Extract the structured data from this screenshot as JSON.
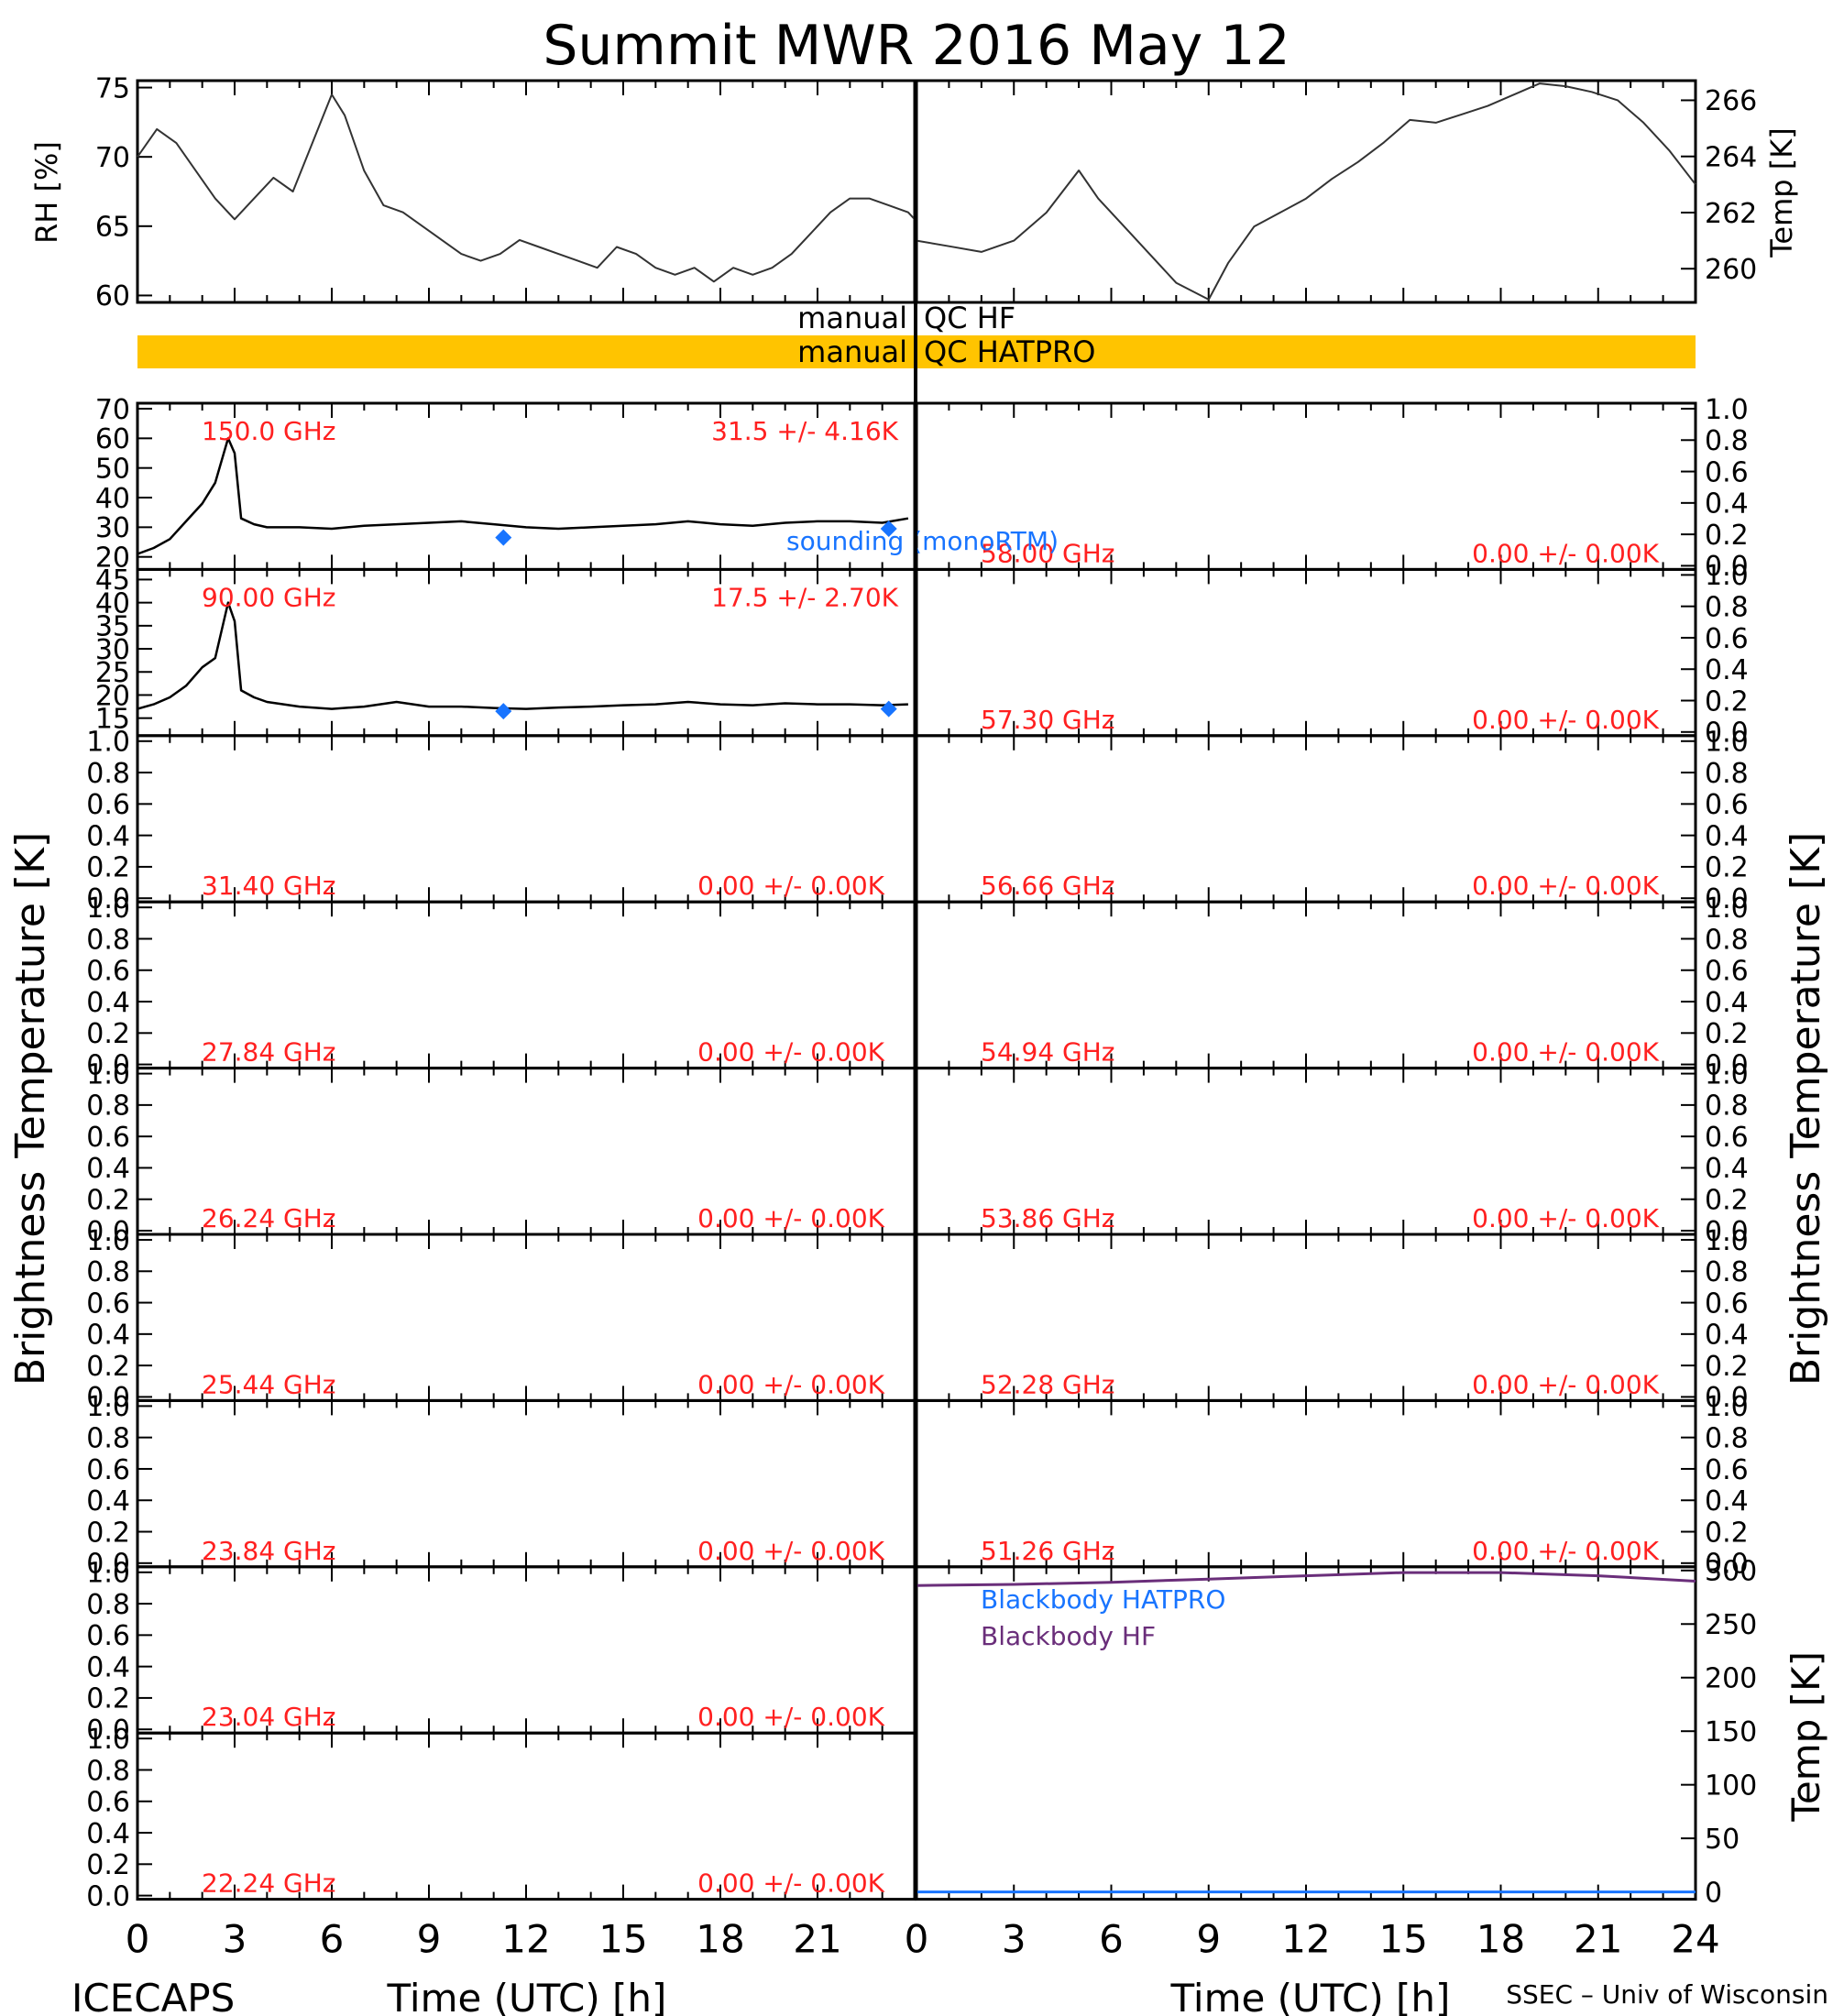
{
  "title": "Summit MWR 2016 May 12",
  "footer": {
    "left": "ICECAPS",
    "right": "SSEC – Univ of Wisconsin"
  },
  "axis_labels": {
    "rh": "RH [%]",
    "temp": "Temp [K]",
    "tb_left": "Brightness Temperature [K]",
    "tb_right": "Brightness Temperature [K]",
    "bb_temp": "Temp [K]",
    "time_left": "Time (UTC) [h]",
    "time_right": "Time (UTC) [h]"
  },
  "qc": {
    "hf": "manual QC HF",
    "hatpro": "manual QC HATPRO",
    "hatpro_color": "#FFC400"
  },
  "annotations": {
    "sounding": "sounding (monoRTM)",
    "sounding_color": "#1874FF",
    "text_color": "#FF2020"
  },
  "bb_legend": {
    "hatpro": "Blackbody HATPRO",
    "hatpro_color": "#1874FF",
    "hf": "Blackbody HF",
    "hf_color": "#6A2E7A"
  },
  "chart_data": [
    {
      "id": "rh",
      "type": "line",
      "xlim": [
        0,
        12
      ],
      "ylim": [
        59.5,
        75.5
      ],
      "yticks": [
        60,
        65,
        70,
        75
      ],
      "ylabel": "RH [%]",
      "x": [
        0,
        0.3,
        0.6,
        0.9,
        1.2,
        1.5,
        1.8,
        2.1,
        2.4,
        2.7,
        3.0,
        3.2,
        3.5,
        3.8,
        4.1,
        4.4,
        4.7,
        5.0,
        5.3,
        5.6,
        5.9,
        6.2,
        6.5,
        6.8,
        7.1,
        7.4,
        7.7,
        8.0,
        8.3,
        8.6,
        8.9,
        9.2,
        9.5,
        9.8,
        10.1,
        10.4,
        10.7,
        11.0,
        11.3,
        11.6,
        11.9,
        12.0
      ],
      "y": [
        70,
        72,
        71,
        69,
        67,
        65.5,
        67,
        68.5,
        67.5,
        71,
        74.5,
        73,
        69,
        66.5,
        66,
        65,
        64,
        63,
        62.5,
        63,
        64,
        63.5,
        63,
        62.5,
        62,
        63.5,
        63,
        62,
        61.5,
        62,
        61,
        62,
        61.5,
        62,
        63,
        64.5,
        66,
        67,
        67,
        66.5,
        66,
        65.5
      ]
    },
    {
      "id": "temp",
      "type": "line",
      "xlim": [
        12,
        24
      ],
      "ylim": [
        258.8,
        266.7
      ],
      "yticks": [
        260,
        262,
        264,
        266
      ],
      "ylabel": "Temp [K]",
      "x": [
        12,
        12.5,
        13,
        13.5,
        14,
        14.5,
        14.8,
        15.2,
        15.6,
        16,
        16.5,
        16.8,
        17.2,
        17.6,
        18,
        18.4,
        18.8,
        19.2,
        19.6,
        20,
        20.4,
        20.8,
        21.2,
        21.6,
        22,
        22.4,
        22.8,
        23.2,
        23.6,
        24
      ],
      "y": [
        261,
        260.8,
        260.6,
        261,
        262,
        263.5,
        262.5,
        261.5,
        260.5,
        259.5,
        258.9,
        260.2,
        261.5,
        262,
        262.5,
        263.2,
        263.8,
        264.5,
        265.3,
        265.2,
        265.5,
        265.8,
        266.2,
        266.6,
        266.5,
        266.3,
        266,
        265.2,
        264.2,
        263
      ],
      "note": "x axis shows 0-24 on its own scale; values mapped here continue from left panel"
    },
    {
      "id": "hf150",
      "type": "line",
      "label": "150.0 GHz",
      "stat": "31.5 +/- 4.16K",
      "xlim": [
        0,
        24
      ],
      "ylim": [
        17,
        70
      ],
      "yticks": [
        20,
        30,
        40,
        50,
        60,
        70
      ],
      "x": [
        0,
        0.5,
        1,
        1.5,
        2,
        2.4,
        2.8,
        3.0,
        3.2,
        3.6,
        4,
        5,
        6,
        7,
        8,
        9,
        10,
        11,
        12,
        13,
        14,
        15,
        16,
        17,
        18,
        19,
        20,
        21,
        22,
        23,
        23.8
      ],
      "y": [
        21,
        23,
        26,
        32,
        38,
        45,
        60,
        55,
        33,
        31,
        30,
        30,
        29.5,
        30.5,
        31,
        31.5,
        32,
        31,
        30,
        29.5,
        30,
        30.5,
        31,
        32,
        31,
        30.5,
        31.5,
        32,
        32,
        31.5,
        33
      ],
      "sounding": {
        "x": [
          11.3,
          23.2
        ],
        "y": [
          26.5,
          29.5
        ]
      }
    },
    {
      "id": "hf90",
      "type": "line",
      "label": "90.00 GHz",
      "stat": "17.5 +/- 2.70K",
      "xlim": [
        0,
        24
      ],
      "ylim": [
        12,
        46
      ],
      "yticks": [
        15,
        20,
        25,
        30,
        35,
        40,
        45
      ],
      "x": [
        0,
        0.5,
        1,
        1.5,
        2,
        2.4,
        2.8,
        3.0,
        3.2,
        3.6,
        4,
        5,
        6,
        7,
        8,
        9,
        10,
        11,
        12,
        13,
        14,
        15,
        16,
        17,
        18,
        19,
        20,
        21,
        22,
        23,
        23.8
      ],
      "y": [
        17,
        18,
        19.5,
        22,
        26,
        28,
        40,
        36,
        21,
        19.5,
        18.5,
        17.5,
        17,
        17.5,
        18.5,
        17.5,
        17.5,
        17.2,
        17,
        17.3,
        17.5,
        17.8,
        18,
        18.5,
        18,
        17.8,
        18.2,
        18,
        18,
        17.8,
        18
      ],
      "sounding": {
        "x": [
          11.3,
          23.2
        ],
        "y": [
          16.5,
          17
        ]
      }
    },
    {
      "id": "bb",
      "type": "line",
      "xlim": [
        0,
        24
      ],
      "ylim": [
        0,
        300
      ],
      "yticks": [
        0,
        50,
        100,
        150,
        200,
        250,
        300
      ],
      "ylabel": "Temp [K]",
      "xticks": [
        0,
        3,
        6,
        9,
        12,
        15,
        18,
        21,
        24
      ],
      "series": [
        {
          "name": "Blackbody HF",
          "x": [
            0,
            3,
            6,
            9,
            12,
            15,
            18,
            21,
            24
          ],
          "y": [
            286,
            287,
            289,
            292,
            295,
            298,
            298,
            295,
            290
          ]
        },
        {
          "name": "Blackbody HATPRO",
          "x": [
            0,
            24
          ],
          "y": [
            0,
            0
          ]
        }
      ]
    }
  ],
  "empty_panels": {
    "ylabels": [
      "0.0",
      "0.2",
      "0.4",
      "0.6",
      "0.8",
      "1.0"
    ],
    "stat": "0.00 +/- 0.00K",
    "left": [
      "31.40 GHz",
      "27.84 GHz",
      "26.24 GHz",
      "25.44 GHz",
      "23.84 GHz",
      "23.04 GHz",
      "22.24 GHz"
    ],
    "right": [
      "58.00 GHz",
      "57.30 GHz",
      "56.66 GHz",
      "54.94 GHz",
      "53.86 GHz",
      "52.28 GHz",
      "51.26 GHz"
    ]
  },
  "time_ticks_left": [
    "0",
    "3",
    "6",
    "9",
    "12",
    "15",
    "18",
    "21"
  ],
  "time_ticks_right": [
    "0",
    "3",
    "6",
    "9",
    "12",
    "15",
    "18",
    "21",
    "24"
  ]
}
